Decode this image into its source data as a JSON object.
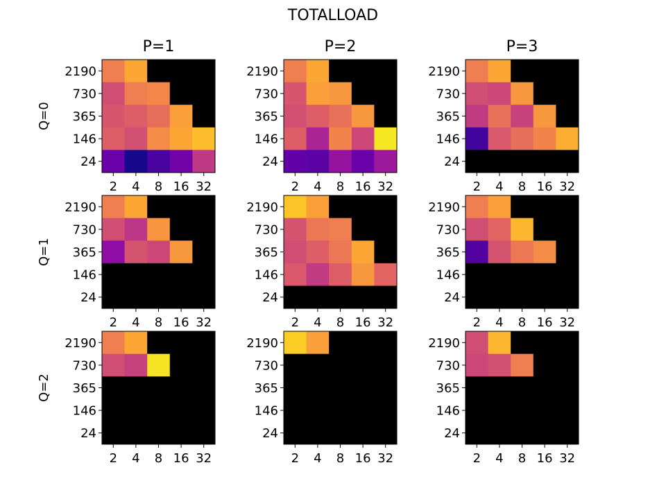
{
  "chart_data": {
    "type": "heatmap",
    "title": "TOTALLOAD",
    "colormap": "plasma",
    "missing_color": "#000000",
    "x_tick_labels": [
      "2",
      "4",
      "8",
      "16",
      "32"
    ],
    "y_tick_labels": [
      "2190",
      "730",
      "365",
      "146",
      "24"
    ],
    "column_titles": [
      "P=1",
      "P=2",
      "P=3"
    ],
    "row_labels": [
      "Q=0",
      "Q=1",
      "Q=2"
    ],
    "value_note": "cell values are approximate normalized colormap positions (0-1); null = no data (black)",
    "panels": [
      {
        "row": "Q=0",
        "col": "P=1",
        "values": [
          [
            0.68,
            0.8,
            null,
            null,
            null
          ],
          [
            0.52,
            0.68,
            0.71,
            null,
            null
          ],
          [
            0.55,
            0.58,
            0.63,
            0.78,
            null
          ],
          [
            0.58,
            0.53,
            0.72,
            0.8,
            0.86
          ],
          [
            0.2,
            0.02,
            0.12,
            0.22,
            0.45
          ]
        ]
      },
      {
        "row": "Q=0",
        "col": "P=2",
        "values": [
          [
            0.68,
            0.8,
            null,
            null,
            null
          ],
          [
            0.55,
            0.78,
            0.76,
            null,
            null
          ],
          [
            0.53,
            0.58,
            0.64,
            0.76,
            null
          ],
          [
            0.58,
            0.38,
            0.7,
            0.5,
            0.96
          ],
          [
            0.18,
            0.16,
            0.32,
            0.2,
            0.34
          ]
        ]
      },
      {
        "row": "Q=0",
        "col": "P=3",
        "values": [
          [
            0.68,
            0.8,
            null,
            null,
            null
          ],
          [
            0.52,
            0.5,
            0.76,
            null,
            null
          ],
          [
            0.46,
            0.64,
            0.48,
            0.76,
            null
          ],
          [
            0.1,
            0.56,
            0.63,
            0.7,
            0.82
          ],
          [
            null,
            null,
            null,
            null,
            null
          ]
        ]
      },
      {
        "row": "Q=1",
        "col": "P=1",
        "values": [
          [
            0.68,
            0.8,
            null,
            null,
            null
          ],
          [
            0.52,
            0.44,
            0.75,
            null,
            null
          ],
          [
            0.3,
            0.54,
            0.5,
            0.76,
            null
          ],
          [
            null,
            null,
            null,
            null,
            null
          ],
          [
            null,
            null,
            null,
            null,
            null
          ]
        ]
      },
      {
        "row": "Q=1",
        "col": "P=2",
        "values": [
          [
            0.88,
            0.78,
            null,
            null,
            null
          ],
          [
            0.54,
            0.66,
            0.68,
            null,
            null
          ],
          [
            0.52,
            0.58,
            0.66,
            0.8,
            null
          ],
          [
            0.56,
            0.46,
            0.58,
            0.76,
            0.6
          ],
          [
            null,
            null,
            null,
            null,
            null
          ]
        ]
      },
      {
        "row": "Q=1",
        "col": "P=3",
        "values": [
          [
            0.68,
            0.78,
            null,
            null,
            null
          ],
          [
            0.52,
            0.6,
            0.84,
            null,
            null
          ],
          [
            0.14,
            0.54,
            0.66,
            0.72,
            null
          ],
          [
            null,
            null,
            null,
            null,
            null
          ],
          [
            null,
            null,
            null,
            null,
            null
          ]
        ]
      },
      {
        "row": "Q=2",
        "col": "P=1",
        "values": [
          [
            0.68,
            0.8,
            null,
            null,
            null
          ],
          [
            0.52,
            0.48,
            0.95,
            null,
            null
          ],
          [
            null,
            null,
            null,
            null,
            null
          ],
          [
            null,
            null,
            null,
            null,
            null
          ],
          [
            null,
            null,
            null,
            null,
            null
          ]
        ]
      },
      {
        "row": "Q=2",
        "col": "P=2",
        "values": [
          [
            0.9,
            0.78,
            null,
            null,
            null
          ],
          [
            null,
            null,
            null,
            null,
            null
          ],
          [
            null,
            null,
            null,
            null,
            null
          ],
          [
            null,
            null,
            null,
            null,
            null
          ],
          [
            null,
            null,
            null,
            null,
            null
          ]
        ]
      },
      {
        "row": "Q=2",
        "col": "P=3",
        "values": [
          [
            0.52,
            0.84,
            null,
            null,
            null
          ],
          [
            0.5,
            0.53,
            0.68,
            null,
            null
          ],
          [
            null,
            null,
            null,
            null,
            null
          ],
          [
            null,
            null,
            null,
            null,
            null
          ],
          [
            null,
            null,
            null,
            null,
            null
          ]
        ]
      }
    ]
  }
}
